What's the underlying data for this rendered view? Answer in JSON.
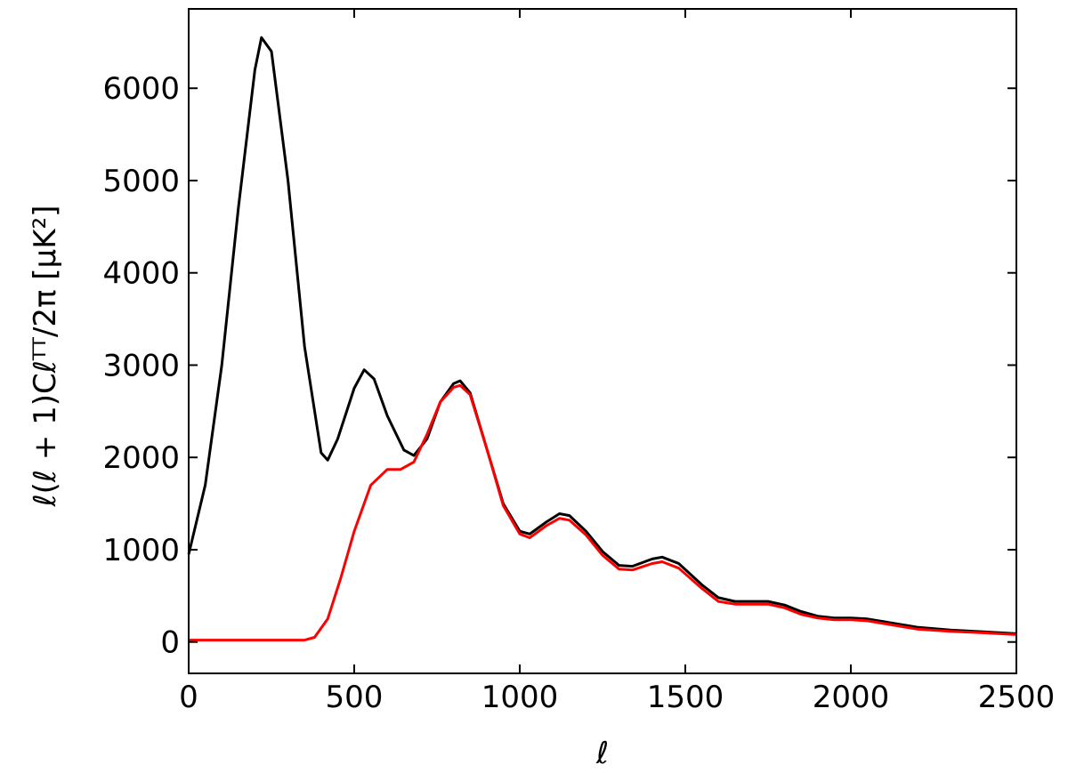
{
  "chart_data": {
    "type": "line",
    "xlabel": "ℓ",
    "ylabel": "ℓ(ℓ + 1)Cℓᵀᵀ/2π [μK²]",
    "xlim": [
      0,
      2500
    ],
    "xticks": [
      0,
      500,
      1000,
      1500,
      2000,
      2500
    ],
    "ylim": [
      -340,
      6860
    ],
    "yticks": [
      0,
      1000,
      2000,
      3000,
      4000,
      5000,
      6000
    ],
    "mirror_ticks": true,
    "series": [
      {
        "color": "#000000",
        "x": [
          0,
          50,
          100,
          150,
          200,
          220,
          250,
          300,
          350,
          400,
          420,
          450,
          500,
          530,
          560,
          600,
          650,
          680,
          720,
          760,
          800,
          820,
          850,
          900,
          950,
          1000,
          1030,
          1080,
          1120,
          1150,
          1200,
          1250,
          1300,
          1340,
          1400,
          1430,
          1480,
          1550,
          1600,
          1650,
          1700,
          1750,
          1800,
          1850,
          1900,
          1950,
          2000,
          2050,
          2100,
          2200,
          2300,
          2400,
          2500
        ],
        "values": [
          950,
          1700,
          3000,
          4700,
          6200,
          6550,
          6400,
          5000,
          3200,
          2050,
          1970,
          2200,
          2750,
          2950,
          2850,
          2450,
          2080,
          2020,
          2200,
          2600,
          2800,
          2830,
          2700,
          2100,
          1500,
          1200,
          1170,
          1300,
          1390,
          1370,
          1200,
          980,
          830,
          820,
          900,
          920,
          850,
          620,
          480,
          440,
          440,
          440,
          400,
          330,
          280,
          260,
          260,
          250,
          220,
          160,
          130,
          110,
          90
        ]
      },
      {
        "color": "#ff0000",
        "x": [
          0,
          350,
          380,
          420,
          460,
          500,
          550,
          600,
          640,
          680,
          720,
          760,
          800,
          820,
          850,
          900,
          950,
          1000,
          1030,
          1080,
          1120,
          1150,
          1200,
          1250,
          1300,
          1340,
          1400,
          1430,
          1480,
          1550,
          1600,
          1650,
          1700,
          1750,
          1800,
          1850,
          1900,
          1950,
          2000,
          2050,
          2100,
          2200,
          2300,
          2400,
          2500
        ],
        "values": [
          20,
          20,
          50,
          250,
          700,
          1200,
          1700,
          1870,
          1870,
          1950,
          2250,
          2600,
          2760,
          2780,
          2680,
          2100,
          1480,
          1170,
          1130,
          1260,
          1340,
          1320,
          1160,
          940,
          790,
          780,
          850,
          870,
          800,
          580,
          440,
          410,
          410,
          410,
          370,
          300,
          260,
          240,
          240,
          230,
          200,
          140,
          115,
          100,
          80
        ]
      }
    ]
  }
}
